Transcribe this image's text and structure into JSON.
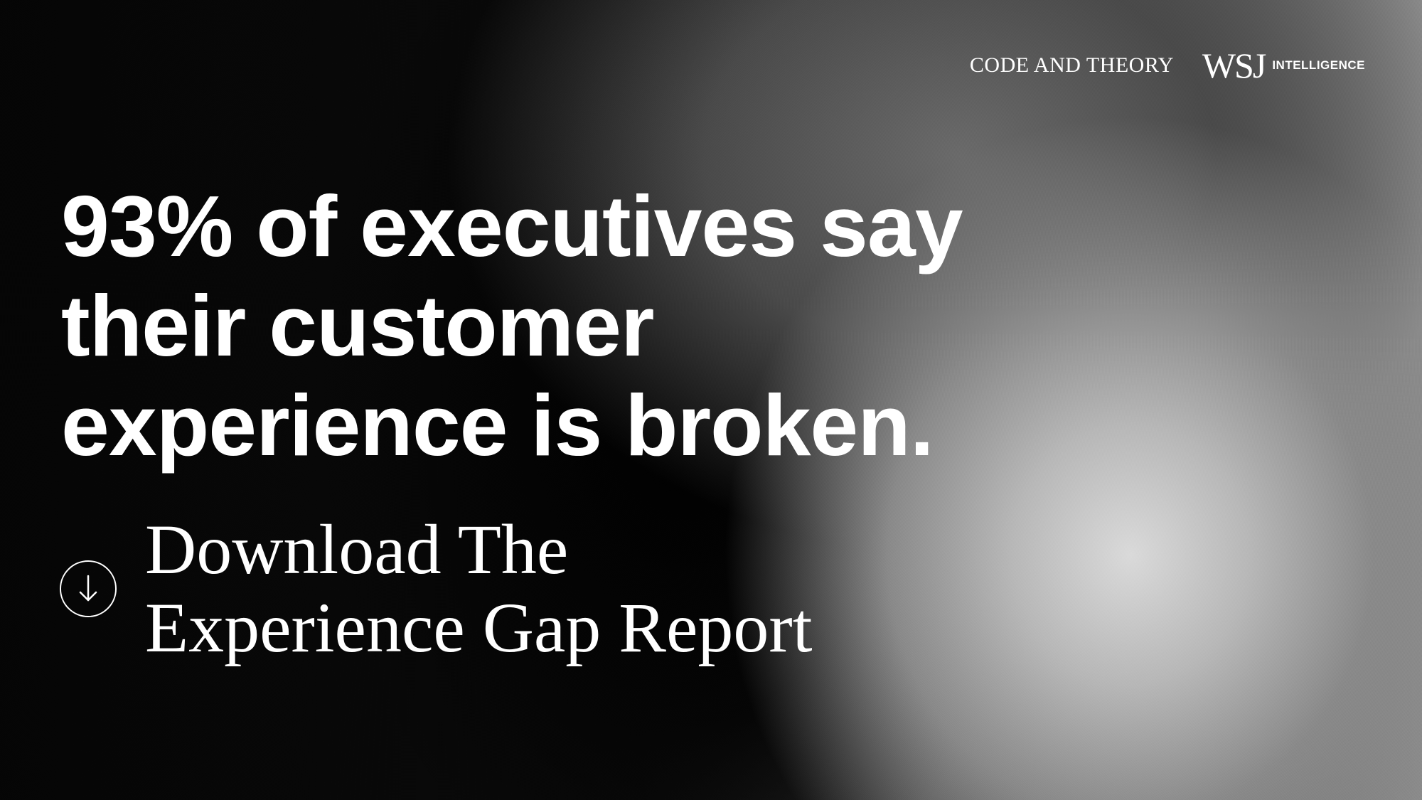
{
  "brand": {
    "partner_logo": "CODE AND THEORY",
    "wsj_mark": "WSJ",
    "wsj_sub": "INTELLIGENCE"
  },
  "headline": {
    "line1": "93% of executives say",
    "line2": "their customer",
    "line3": "experience is broken."
  },
  "cta": {
    "icon": "download-arrow-icon",
    "line1": "Download The",
    "line2": "Experience Gap Report"
  },
  "colors": {
    "text": "#ffffff",
    "background_dark": "#000000",
    "background_light": "#d9d9d9"
  }
}
